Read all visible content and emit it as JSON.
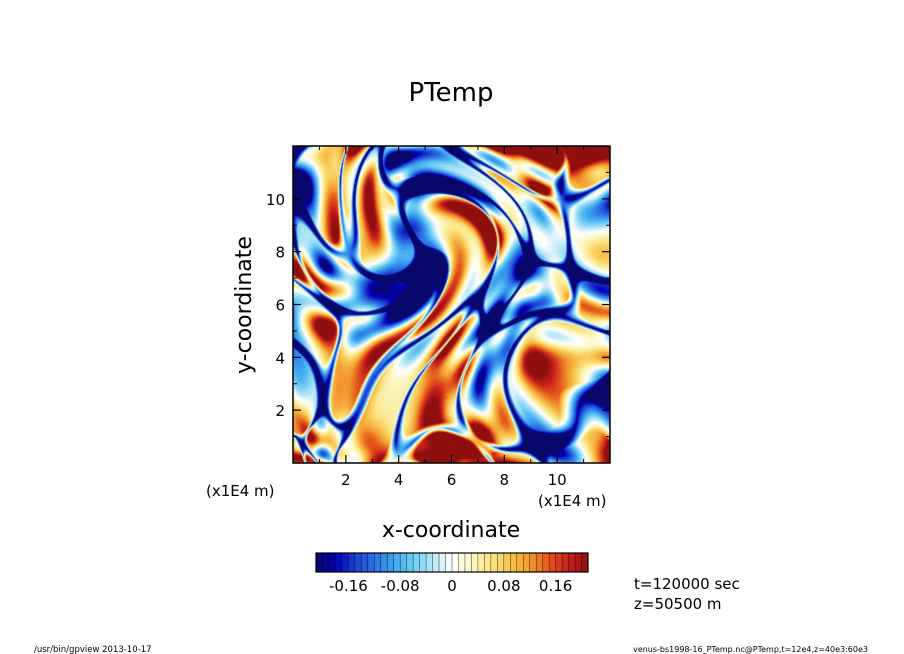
{
  "chart_data": {
    "type": "heatmap",
    "title": "PTemp",
    "xlabel": "x-coordinate",
    "ylabel": "y-coordinate",
    "x_unit": "(x1E4 m)",
    "y_unit": "(x1E4 m)",
    "xlim": [
      0,
      12
    ],
    "ylim": [
      0,
      12
    ],
    "x_ticks": [
      {
        "value": 2,
        "label": "2"
      },
      {
        "value": 4,
        "label": "4"
      },
      {
        "value": 6,
        "label": "6"
      },
      {
        "value": 8,
        "label": "8"
      },
      {
        "value": 10,
        "label": "10"
      }
    ],
    "y_ticks": [
      {
        "value": 2,
        "label": "2"
      },
      {
        "value": 4,
        "label": "4"
      },
      {
        "value": 6,
        "label": "6"
      },
      {
        "value": 8,
        "label": "8"
      },
      {
        "value": 10,
        "label": "10"
      }
    ],
    "colorbar": {
      "range": [
        -0.21,
        0.21
      ],
      "n_levels": 42,
      "ticks": [
        {
          "value": -0.16,
          "label": "-0.16"
        },
        {
          "value": -0.08,
          "label": "-0.08"
        },
        {
          "value": 0,
          "label": "0"
        },
        {
          "value": 0.08,
          "label": "0.08"
        },
        {
          "value": 0.16,
          "label": "0.16"
        }
      ],
      "colors": [
        "#08086b",
        "#0000b4",
        "#1d3fd2",
        "#2e72e6",
        "#3fa6ee",
        "#6ecdf3",
        "#b6e6f7",
        "#ffffff",
        "#fdf7c4",
        "#fbe588",
        "#f7c44e",
        "#f29a2e",
        "#e4571c",
        "#c81e1e",
        "#8f0f0f"
      ]
    },
    "grid": false,
    "legend": "colorbar-bottom"
  },
  "annotations": {
    "time": "t=120000 sec",
    "height": "z=50500 m"
  },
  "footer": {
    "left": "/usr/bin/gpview   2013-10-17",
    "right": "venus-bs1998-16_PTemp.nc@PTemp,t=12e4,z=40e3:60e3"
  }
}
